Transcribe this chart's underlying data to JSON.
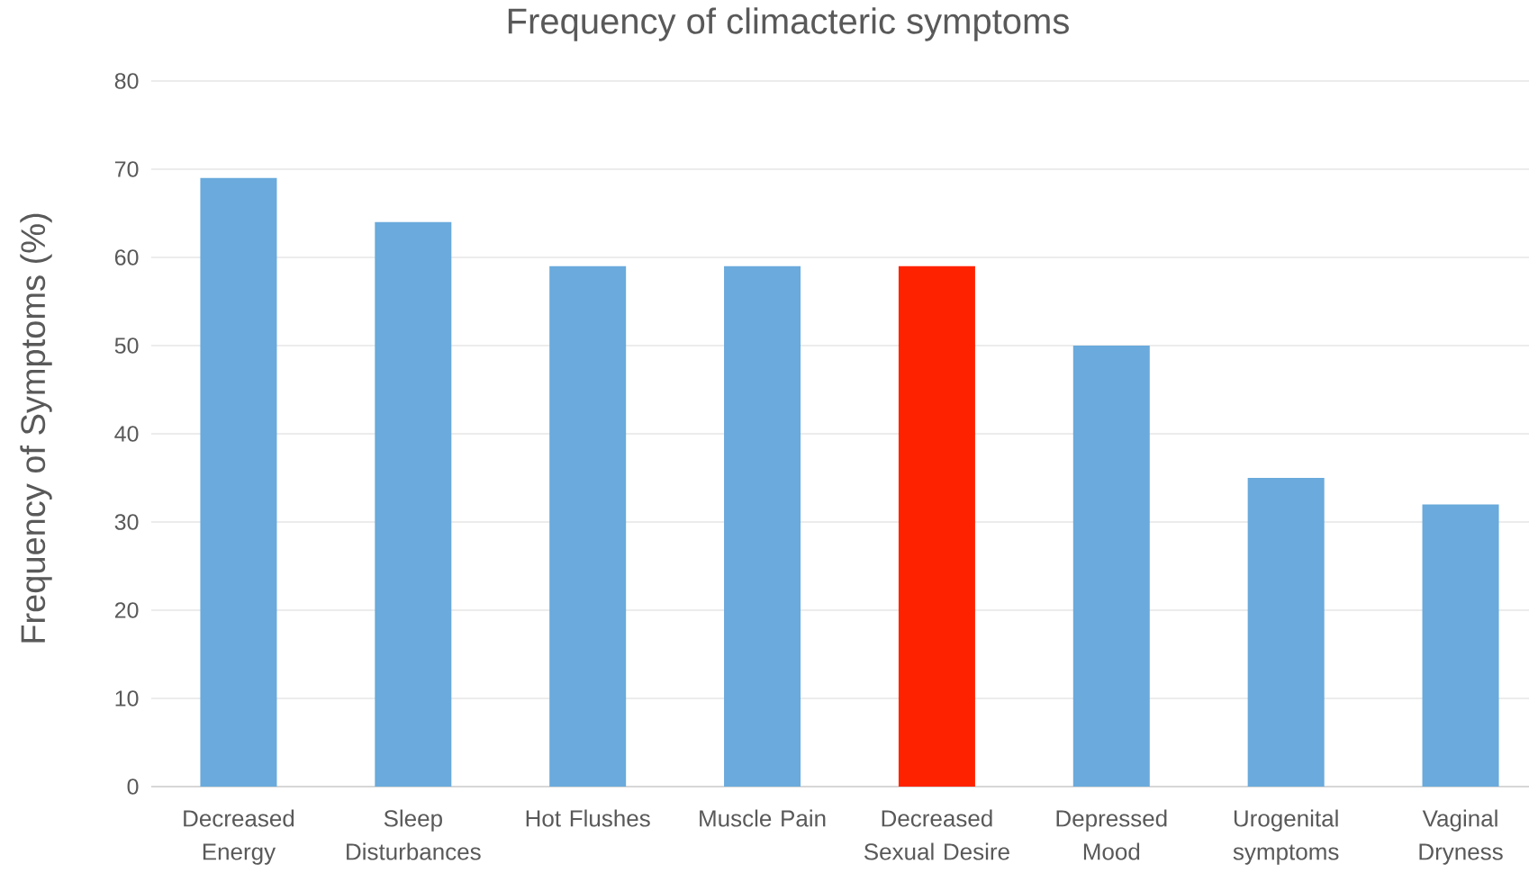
{
  "chart_data": {
    "type": "bar",
    "title": "Frequency of climacteric symptoms",
    "ylabel": "Frequency of Symptoms (%)",
    "categories": [
      "Decreased Energy",
      "Sleep Disturbances",
      "Hot Flushes",
      "Muscle Pain",
      "Decreased Sexual Desire",
      "Depressed Mood",
      "Urogenital symptoms",
      "Vaginal Dryness"
    ],
    "values": [
      69,
      64,
      59,
      59,
      59,
      50,
      35,
      32
    ],
    "colors": [
      "#6aaadc",
      "#6aaadc",
      "#6aaadc",
      "#6aaadc",
      "#ff2200",
      "#6aaadc",
      "#6aaadc",
      "#6aaadc"
    ],
    "ylim": [
      0,
      80
    ],
    "yticks": [
      0,
      10,
      20,
      30,
      40,
      50,
      60,
      70,
      80
    ],
    "grid": "y"
  }
}
